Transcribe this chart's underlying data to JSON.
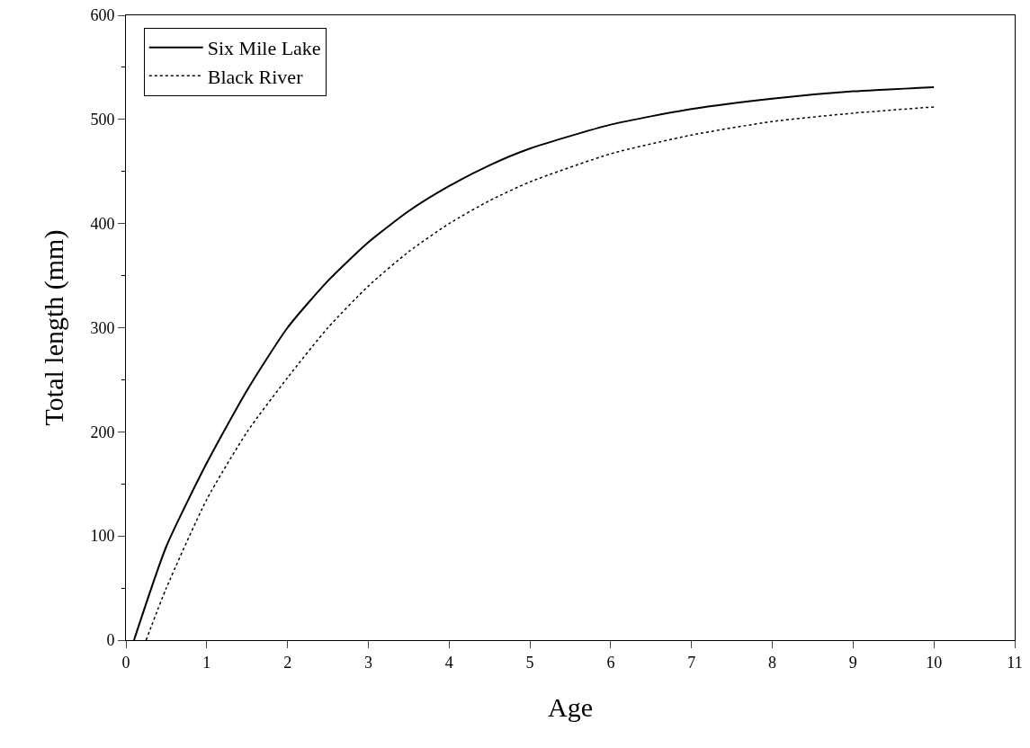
{
  "chart_data": {
    "type": "line",
    "xlabel": "Age",
    "ylabel": "Total length (mm)",
    "xlim": [
      0,
      11
    ],
    "xticks": [
      0,
      1,
      2,
      3,
      4,
      5,
      6,
      7,
      8,
      9,
      10,
      11
    ],
    "ylim": [
      0,
      600
    ],
    "yticks": [
      0,
      100,
      200,
      300,
      400,
      500,
      600
    ],
    "grid": false,
    "legend": "top left",
    "marker": "none",
    "series": [
      {
        "name": "Six Mile Lake",
        "color": "#000000",
        "line_style": "solid",
        "x": [
          0.1,
          0.5,
          1,
          1.5,
          2,
          2.5,
          3,
          3.5,
          4,
          4.5,
          5,
          6,
          7,
          8,
          9,
          10
        ],
        "values": [
          0,
          90,
          170,
          240,
          300,
          345,
          382,
          412,
          436,
          456,
          472,
          495,
          510,
          520,
          527,
          531
        ]
      },
      {
        "name": "Black River",
        "color": "#000000",
        "line_style": "dotted",
        "x": [
          0.25,
          0.5,
          1,
          1.5,
          2,
          2.5,
          3,
          3.5,
          4,
          4.5,
          5,
          6,
          7,
          8,
          9,
          10
        ],
        "values": [
          0,
          50,
          135,
          200,
          252,
          300,
          340,
          373,
          400,
          422,
          440,
          467,
          485,
          498,
          506,
          512
        ]
      }
    ]
  }
}
